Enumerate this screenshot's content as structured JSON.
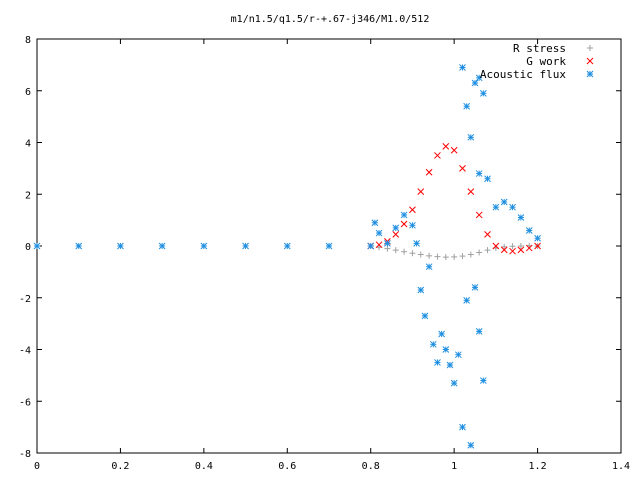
{
  "chart_data": {
    "type": "scatter",
    "title": "m1/n1.5/q1.5/r-+.67-j346/M1.0/512",
    "xlabel": "",
    "ylabel": "",
    "xlim": [
      0,
      1.4
    ],
    "ylim": [
      -8,
      8
    ],
    "x_ticks": [
      "0",
      "0.2",
      "0.4",
      "0.6",
      "0.8",
      "1",
      "1.2",
      "1.4"
    ],
    "y_ticks": [
      "8",
      "6",
      "4",
      "2",
      "0",
      "-2",
      "-4",
      "-6",
      "-8"
    ],
    "legend_position": "top-right",
    "grid": false,
    "series": [
      {
        "name": "R stress",
        "marker": "plus",
        "color": "#a0a0a0",
        "points": [
          [
            0.8,
            0.0
          ],
          [
            0.82,
            -0.05
          ],
          [
            0.84,
            -0.1
          ],
          [
            0.86,
            -0.16
          ],
          [
            0.88,
            -0.22
          ],
          [
            0.9,
            -0.28
          ],
          [
            0.92,
            -0.33
          ],
          [
            0.94,
            -0.38
          ],
          [
            0.96,
            -0.41
          ],
          [
            0.98,
            -0.43
          ],
          [
            1.0,
            -0.42
          ],
          [
            1.02,
            -0.39
          ],
          [
            1.04,
            -0.33
          ],
          [
            1.06,
            -0.25
          ],
          [
            1.08,
            -0.16
          ],
          [
            1.1,
            -0.08
          ],
          [
            1.12,
            -0.03
          ],
          [
            1.14,
            -0.01
          ],
          [
            1.16,
            0.0
          ],
          [
            1.18,
            0.01
          ],
          [
            1.2,
            0.0
          ]
        ]
      },
      {
        "name": "G work",
        "marker": "cross",
        "color": "#ff0000",
        "points": [
          [
            0.8,
            0.0
          ],
          [
            0.82,
            0.05
          ],
          [
            0.84,
            0.18
          ],
          [
            0.86,
            0.45
          ],
          [
            0.88,
            0.85
          ],
          [
            0.9,
            1.4
          ],
          [
            0.92,
            2.1
          ],
          [
            0.94,
            2.85
          ],
          [
            0.96,
            3.5
          ],
          [
            0.98,
            3.85
          ],
          [
            1.0,
            3.7
          ],
          [
            1.02,
            3.0
          ],
          [
            1.04,
            2.1
          ],
          [
            1.06,
            1.2
          ],
          [
            1.08,
            0.45
          ],
          [
            1.1,
            0.0
          ],
          [
            1.12,
            -0.15
          ],
          [
            1.14,
            -0.2
          ],
          [
            1.16,
            -0.15
          ],
          [
            1.18,
            -0.08
          ],
          [
            1.2,
            0.0
          ]
        ]
      },
      {
        "name": "Acoustic flux",
        "marker": "star",
        "color": "#1f8fe0",
        "points": [
          [
            0.0,
            0.0
          ],
          [
            0.1,
            0.0
          ],
          [
            0.2,
            0.0
          ],
          [
            0.3,
            0.0
          ],
          [
            0.4,
            0.0
          ],
          [
            0.5,
            0.0
          ],
          [
            0.6,
            0.0
          ],
          [
            0.7,
            0.0
          ],
          [
            0.8,
            0.0
          ],
          [
            0.81,
            0.9
          ],
          [
            0.82,
            0.5
          ],
          [
            0.84,
            0.1
          ],
          [
            0.86,
            0.7
          ],
          [
            0.88,
            1.2
          ],
          [
            0.9,
            0.8
          ],
          [
            0.91,
            0.1
          ],
          [
            0.92,
            -1.7
          ],
          [
            0.93,
            -2.7
          ],
          [
            0.94,
            -0.8
          ],
          [
            0.95,
            -3.8
          ],
          [
            0.96,
            -4.5
          ],
          [
            0.97,
            -3.4
          ],
          [
            0.98,
            -4.0
          ],
          [
            0.99,
            -4.6
          ],
          [
            1.0,
            -5.3
          ],
          [
            1.01,
            -4.2
          ],
          [
            1.02,
            -7.0
          ],
          [
            1.03,
            -2.1
          ],
          [
            1.04,
            -7.7
          ],
          [
            1.05,
            -1.6
          ],
          [
            1.06,
            -3.3
          ],
          [
            1.07,
            -5.2
          ],
          [
            1.02,
            6.9
          ],
          [
            1.03,
            5.4
          ],
          [
            1.04,
            4.2
          ],
          [
            1.05,
            6.3
          ],
          [
            1.06,
            6.5
          ],
          [
            1.07,
            5.9
          ],
          [
            1.08,
            2.6
          ],
          [
            1.06,
            2.8
          ],
          [
            1.1,
            1.5
          ],
          [
            1.12,
            1.7
          ],
          [
            1.14,
            1.5
          ],
          [
            1.16,
            1.1
          ],
          [
            1.18,
            0.6
          ],
          [
            1.2,
            0.3
          ]
        ]
      }
    ]
  }
}
